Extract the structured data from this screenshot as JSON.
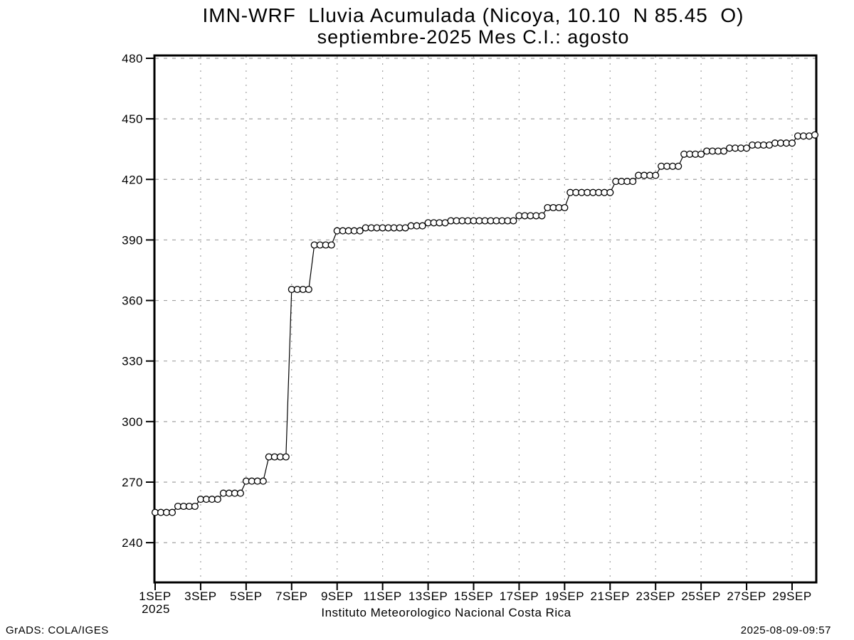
{
  "colors": {
    "background": "#ffffff",
    "foreground": "#000000",
    "grid": "#a0a0a0",
    "marker_fill": "#ffffff"
  },
  "footer": {
    "caption": "Instituto Meteorologico Nacional Costa Rica",
    "credit": "GrADS: COLA/IGES",
    "timestamp": "2025-08-09-09:57"
  },
  "chart_data": {
    "type": "line",
    "title": "IMN-WRF  Lluvia Acumulada (Nicoya, 10.10  N 85.45  O)",
    "subtitle": "septiembre-2025 Mes C.I.: agosto",
    "xlabel": "",
    "ylabel": "",
    "marker": "open-circle",
    "grid": {
      "horizontal_style": "dashed",
      "vertical_style": "dotted",
      "color": "#a0a0a0"
    },
    "x_axis": {
      "tick_labels": [
        "1SEP",
        "3SEP",
        "5SEP",
        "7SEP",
        "9SEP",
        "11SEP",
        "13SEP",
        "15SEP",
        "17SEP",
        "19SEP",
        "21SEP",
        "23SEP",
        "25SEP",
        "27SEP",
        "29SEP"
      ],
      "tick_days": [
        1,
        3,
        5,
        7,
        9,
        11,
        13,
        15,
        17,
        19,
        21,
        23,
        25,
        27,
        29
      ],
      "year_label": "2025",
      "range_days": [
        1,
        30.1
      ]
    },
    "y_axis": {
      "ticks": [
        240,
        270,
        300,
        330,
        360,
        390,
        420,
        450,
        480
      ],
      "range": [
        216,
        481
      ]
    },
    "series": [
      {
        "name": "lluvia-acumulada-mm",
        "interval": "6h",
        "points": [
          [
            1,
            255
          ],
          [
            1.25,
            255
          ],
          [
            1.5,
            255
          ],
          [
            1.75,
            255
          ],
          [
            2,
            258
          ],
          [
            2.25,
            258
          ],
          [
            2.5,
            258
          ],
          [
            2.75,
            258
          ],
          [
            3,
            261.5
          ],
          [
            3.25,
            261.5
          ],
          [
            3.5,
            261.5
          ],
          [
            3.75,
            261.5
          ],
          [
            4,
            264.5
          ],
          [
            4.25,
            264.5
          ],
          [
            4.5,
            264.5
          ],
          [
            4.75,
            264.5
          ],
          [
            5,
            270.5
          ],
          [
            5.25,
            270.5
          ],
          [
            5.5,
            270.5
          ],
          [
            5.75,
            270.5
          ],
          [
            6,
            282.5
          ],
          [
            6.25,
            282.5
          ],
          [
            6.5,
            282.5
          ],
          [
            6.75,
            282.5
          ],
          [
            7,
            365.5
          ],
          [
            7.25,
            365.5
          ],
          [
            7.5,
            365.5
          ],
          [
            7.75,
            365.5
          ],
          [
            8,
            387.5
          ],
          [
            8.25,
            387.5
          ],
          [
            8.5,
            387.5
          ],
          [
            8.75,
            387.5
          ],
          [
            9,
            394.5
          ],
          [
            9.25,
            394.5
          ],
          [
            9.5,
            394.5
          ],
          [
            9.75,
            394.5
          ],
          [
            10,
            394.5
          ],
          [
            10.25,
            396
          ],
          [
            10.5,
            396
          ],
          [
            10.75,
            396
          ],
          [
            11,
            396
          ],
          [
            11.25,
            396
          ],
          [
            11.5,
            396
          ],
          [
            11.75,
            396
          ],
          [
            12,
            396
          ],
          [
            12.25,
            397
          ],
          [
            12.5,
            397
          ],
          [
            12.75,
            397
          ],
          [
            13,
            398.5
          ],
          [
            13.25,
            398.5
          ],
          [
            13.5,
            398.5
          ],
          [
            13.75,
            398.5
          ],
          [
            14,
            399.5
          ],
          [
            14.25,
            399.5
          ],
          [
            14.5,
            399.5
          ],
          [
            14.75,
            399.5
          ],
          [
            15,
            399.5
          ],
          [
            15.25,
            399.5
          ],
          [
            15.5,
            399.5
          ],
          [
            15.75,
            399.5
          ],
          [
            16,
            399.5
          ],
          [
            16.25,
            399.5
          ],
          [
            16.5,
            399.5
          ],
          [
            16.75,
            399.5
          ],
          [
            17,
            402
          ],
          [
            17.25,
            402
          ],
          [
            17.5,
            402
          ],
          [
            17.75,
            402
          ],
          [
            18,
            402
          ],
          [
            18.25,
            406
          ],
          [
            18.5,
            406
          ],
          [
            18.75,
            406
          ],
          [
            19,
            406
          ],
          [
            19.25,
            413.5
          ],
          [
            19.5,
            413.5
          ],
          [
            19.75,
            413.5
          ],
          [
            20,
            413.5
          ],
          [
            20.25,
            413.5
          ],
          [
            20.5,
            413.5
          ],
          [
            20.75,
            413.5
          ],
          [
            21,
            413.5
          ],
          [
            21.25,
            419
          ],
          [
            21.5,
            419
          ],
          [
            21.75,
            419
          ],
          [
            22,
            419
          ],
          [
            22.25,
            422
          ],
          [
            22.5,
            422
          ],
          [
            22.75,
            422
          ],
          [
            23,
            422
          ],
          [
            23.25,
            426.5
          ],
          [
            23.5,
            426.5
          ],
          [
            23.75,
            426.5
          ],
          [
            24,
            426.5
          ],
          [
            24.25,
            432.5
          ],
          [
            24.5,
            432.5
          ],
          [
            24.75,
            432.5
          ],
          [
            25,
            432.5
          ],
          [
            25.25,
            434
          ],
          [
            25.5,
            434
          ],
          [
            25.75,
            434
          ],
          [
            26,
            434
          ],
          [
            26.25,
            435.5
          ],
          [
            26.5,
            435.5
          ],
          [
            26.75,
            435.5
          ],
          [
            27,
            435.5
          ],
          [
            27.25,
            437
          ],
          [
            27.5,
            437
          ],
          [
            27.75,
            437
          ],
          [
            28,
            437
          ],
          [
            28.25,
            438
          ],
          [
            28.5,
            438
          ],
          [
            28.75,
            438
          ],
          [
            29,
            438
          ],
          [
            29.25,
            441.5
          ],
          [
            29.5,
            441.5
          ],
          [
            29.75,
            441.5
          ],
          [
            30,
            442
          ]
        ]
      }
    ]
  }
}
